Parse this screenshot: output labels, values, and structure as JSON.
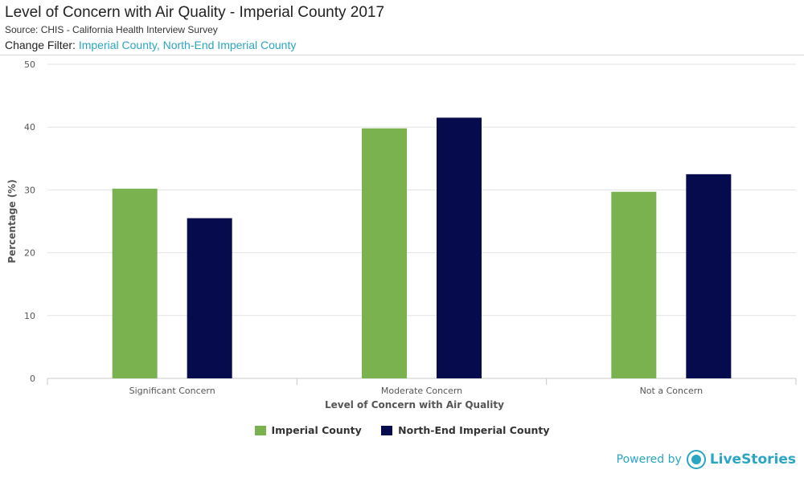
{
  "header": {
    "title": "Level of Concern with Air Quality - Imperial County 2017",
    "source": "Source: CHIS - California Health Interview Survey",
    "filter_label": "Change Filter:",
    "filter_value": "Imperial County, North-End Imperial County"
  },
  "chart_data": {
    "type": "bar",
    "title": "Level of Concern with Air Quality - Imperial County 2017",
    "categories": [
      "Significant Concern",
      "Moderate Concern",
      "Not a Concern"
    ],
    "series": [
      {
        "name": "Imperial County",
        "values": [
          30.2,
          39.8,
          29.7
        ],
        "color": "#7ab24f"
      },
      {
        "name": "North-End Imperial County",
        "values": [
          25.5,
          41.5,
          32.5
        ],
        "color": "#050b4d"
      }
    ],
    "xlabel": "Level of Concern with Air Quality",
    "ylabel": "Percentage (%)",
    "ylim": [
      0,
      50
    ],
    "yticks": [
      0,
      10,
      20,
      30,
      40,
      50
    ],
    "grid": true,
    "legend": "bottom-center"
  },
  "legend": {
    "items": [
      {
        "label": "Imperial County",
        "color": "#7ab24f"
      },
      {
        "label": "North-End Imperial County",
        "color": "#050b4d"
      }
    ]
  },
  "footer": {
    "powered_label": "Powered by",
    "brand": "LiveStories"
  }
}
